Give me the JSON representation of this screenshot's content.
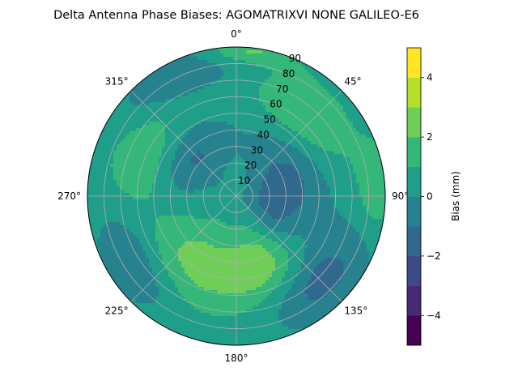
{
  "chart_data": {
    "type": "heatmap",
    "projection": "polar",
    "title": "Delta Antenna Phase Biases: AGOMATRIXVI     NONE GALILEO-E6",
    "theta_zero": "top",
    "theta_direction": "clockwise",
    "theta_ticks": [
      0,
      45,
      90,
      135,
      180,
      225,
      270,
      315
    ],
    "theta_tick_labels": [
      "0°",
      "45°",
      "90°",
      "135°",
      "180°",
      "225°",
      "270°",
      "315°"
    ],
    "r_ticks": [
      10,
      20,
      30,
      40,
      50,
      60,
      70,
      80,
      90
    ],
    "r_tick_labels": [
      "10",
      "20",
      "30",
      "40",
      "50",
      "60",
      "70",
      "80",
      "90"
    ],
    "rlim": [
      0,
      90
    ],
    "grid": true,
    "colorbar": {
      "label": "Bias (mm)",
      "levels": [
        -5,
        -4,
        -3,
        -2,
        -1,
        0,
        1,
        2,
        3,
        4,
        5
      ],
      "ticks": [
        -4,
        -2,
        0,
        2,
        4
      ],
      "tick_labels": [
        "−4",
        "−2",
        "0",
        "2",
        "4"
      ],
      "colormap": "viridis",
      "colors": [
        "#440154",
        "#482878",
        "#3e4989",
        "#31688e",
        "#26828e",
        "#1f9e89",
        "#35b779",
        "#6ece58",
        "#b5de2b",
        "#fde725"
      ]
    },
    "features": [
      {
        "az": 210,
        "zen": 48,
        "value": 2.2,
        "spread_az": 30,
        "spread_zen": 20
      },
      {
        "az": 160,
        "zen": 42,
        "value": 2.0,
        "spread_az": 18,
        "spread_zen": 15
      },
      {
        "az": 40,
        "zen": 65,
        "value": 1.8,
        "spread_az": 22,
        "spread_zen": 14
      },
      {
        "az": 85,
        "zen": 85,
        "value": 1.6,
        "spread_az": 12,
        "spread_zen": 8
      },
      {
        "az": 295,
        "zen": 62,
        "value": 1.5,
        "spread_az": 22,
        "spread_zen": 16
      },
      {
        "az": 5,
        "zen": 88,
        "value": 1.8,
        "spread_az": 12,
        "spread_zen": 5
      },
      {
        "az": 310,
        "zen": 35,
        "value": -1.6,
        "spread_az": 25,
        "spread_zen": 12
      },
      {
        "az": 70,
        "zen": 35,
        "value": -1.4,
        "spread_az": 35,
        "spread_zen": 15
      },
      {
        "az": 235,
        "zen": 72,
        "value": -1.6,
        "spread_az": 20,
        "spread_zen": 12
      },
      {
        "az": 135,
        "zen": 72,
        "value": -1.8,
        "spread_az": 18,
        "spread_zen": 12
      },
      {
        "az": 100,
        "zen": 22,
        "value": -1.3,
        "spread_az": 30,
        "spread_zen": 10
      },
      {
        "az": 330,
        "zen": 80,
        "value": -1.2,
        "spread_az": 20,
        "spread_zen": 10
      }
    ],
    "baseline_value": 0.3
  }
}
